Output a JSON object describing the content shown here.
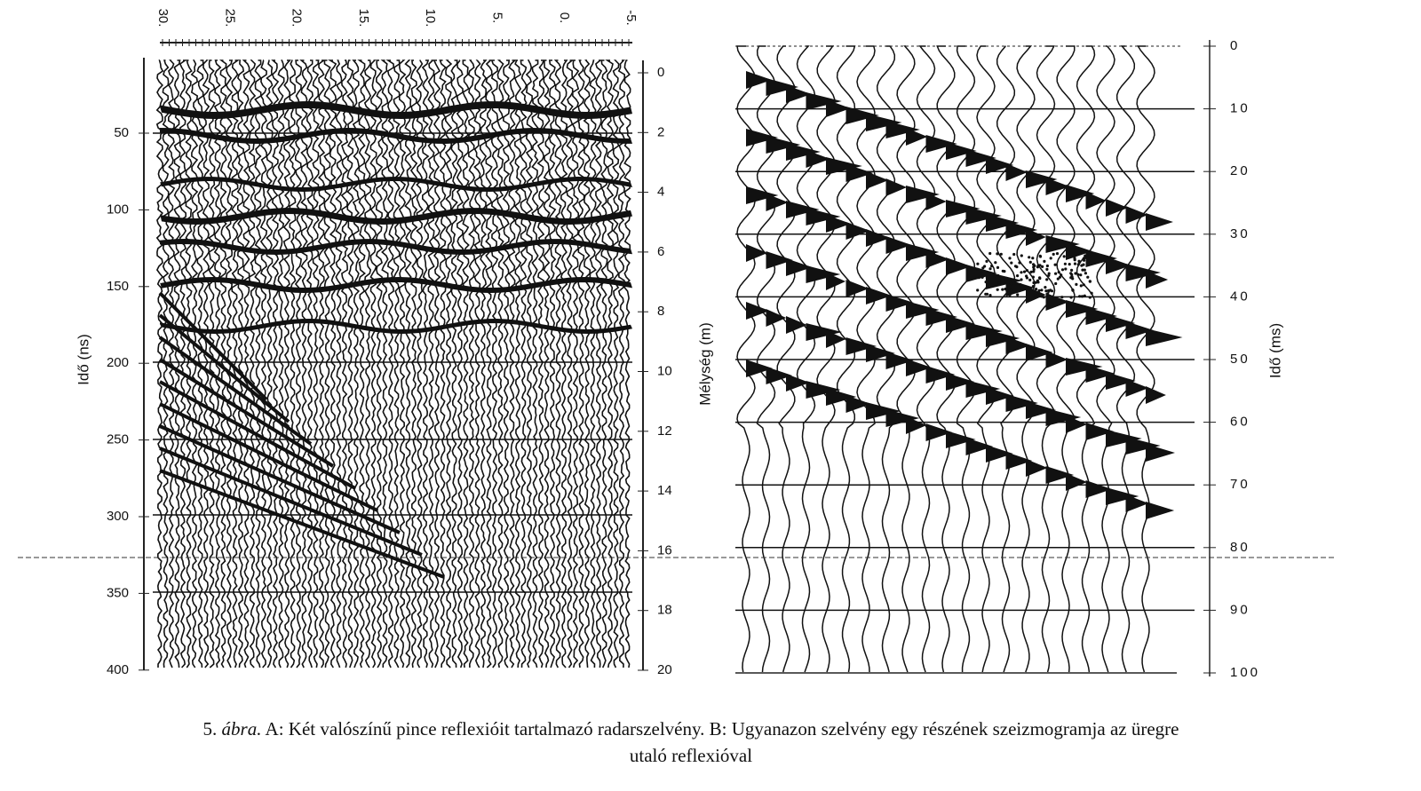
{
  "panel_a": {
    "distance_labels": [
      "30.",
      "25.",
      "20.",
      "15.",
      "10.",
      "5.",
      "0.",
      "-5."
    ],
    "time_labels": [
      "50",
      "100",
      "150",
      "200",
      "250",
      "300",
      "350",
      "400"
    ],
    "time_title": "Idő (ns)",
    "depth_labels": [
      "0",
      "2",
      "4",
      "6",
      "8",
      "10",
      "12",
      "14",
      "16",
      "18",
      "20"
    ],
    "depth_title": "Mélység (m)"
  },
  "panel_b": {
    "time_labels": [
      "0",
      "10",
      "20",
      "30",
      "40",
      "50",
      "60",
      "70",
      "80",
      "90",
      "100"
    ],
    "time_title": "Idő (ms)"
  },
  "caption": {
    "number": "5.",
    "label": "ábra.",
    "line1": "A: Két valószínű pince reflexióit tartalmazó radarszelvény. B: Ugyanazon szelvény egy részének szeizmogramja az üregre",
    "line2": "utaló reflexióval"
  }
}
